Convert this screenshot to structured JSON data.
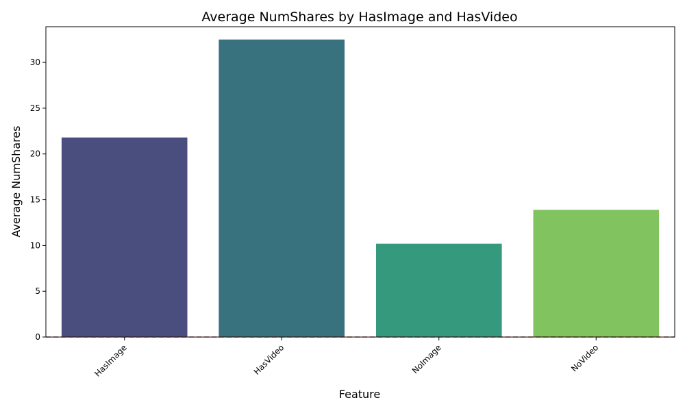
{
  "chart_data": {
    "type": "bar",
    "title": "Average NumShares by HasImage and HasVideo",
    "xlabel": "Feature",
    "ylabel": "Average NumShares",
    "categories": [
      "HasImage",
      "HasVideo",
      "NoImage",
      "NoVideo"
    ],
    "values": [
      21.8,
      32.5,
      10.2,
      13.9
    ],
    "colors": [
      "#4a4e7e",
      "#38727f",
      "#359a7d",
      "#80c35f"
    ],
    "ylim": [
      0,
      33.9
    ],
    "yticks": [
      0,
      5,
      10,
      15,
      20,
      25,
      30
    ],
    "xtick_rotation": 45,
    "reference_line": {
      "y": 0,
      "style": "dashed",
      "color": "#c0504d"
    },
    "grid": false,
    "legend": "none"
  }
}
